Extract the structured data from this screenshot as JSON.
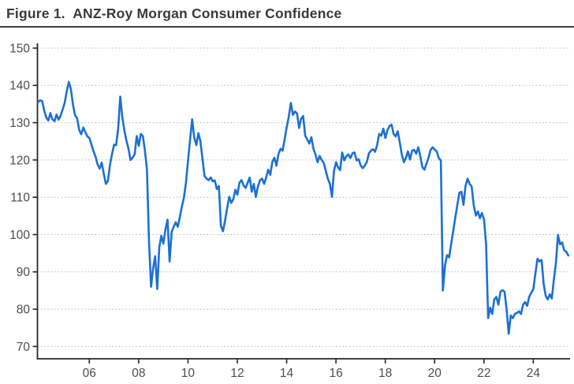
{
  "figure": {
    "title": "Figure 1.  ANZ-Roy Morgan Consumer Confidence"
  },
  "chart_data": {
    "type": "line",
    "title": "Figure 1.  ANZ-Roy Morgan Consumer Confidence",
    "xlabel": "",
    "ylabel": "",
    "legend": "none",
    "grid": "horizontal-dotted",
    "ylim": [
      67,
      151.5
    ],
    "xlim": [
      2003.9,
      2025.55
    ],
    "y_ticks": [
      70,
      80,
      90,
      100,
      110,
      120,
      130,
      140,
      150
    ],
    "x_ticks": [
      {
        "year": 2006,
        "label": "06"
      },
      {
        "year": 2008,
        "label": "08"
      },
      {
        "year": 2010,
        "label": "10"
      },
      {
        "year": 2012,
        "label": "12"
      },
      {
        "year": 2014,
        "label": "14"
      },
      {
        "year": 2016,
        "label": "16"
      },
      {
        "year": 2018,
        "label": "18"
      },
      {
        "year": 2020,
        "label": "20"
      },
      {
        "year": 2022,
        "label": "22"
      },
      {
        "year": 2024,
        "label": "24"
      }
    ],
    "line_color": "#1b70d4",
    "axis_color": "#262626",
    "grid_color": "#b5b5b5",
    "label_color": "#4d4d4d",
    "title_color": "#3a3a3a",
    "series": [
      {
        "name": "ANZ-Roy Morgan Consumer Confidence (index, monthly)",
        "x_start_year": 2003.92,
        "x_step_years": 0.083333,
        "values": [
          135.5,
          136.0,
          135.8,
          133.2,
          131.4,
          130.6,
          132.6,
          130.9,
          130.4,
          132.2,
          130.8,
          131.9,
          133.6,
          135.4,
          138.5,
          140.9,
          139.0,
          134.8,
          132.0,
          131.2,
          128.1,
          126.9,
          128.7,
          127.5,
          126.3,
          125.9,
          124.1,
          122.3,
          120.9,
          118.8,
          117.7,
          119.3,
          116.2,
          113.6,
          114.4,
          118.8,
          121.6,
          124.1,
          124.0,
          128.5,
          137.0,
          131.5,
          128.0,
          125.2,
          123.1,
          120.0,
          120.6,
          121.5,
          126.4,
          123.8,
          127.0,
          126.4,
          122.5,
          117.4,
          98.0,
          86.0,
          91.0,
          94.2,
          85.4,
          96.6,
          99.7,
          97.6,
          101.5,
          104.0,
          92.8,
          100.7,
          102.1,
          103.3,
          102.1,
          104.7,
          107.5,
          110.0,
          114.0,
          119.9,
          125.5,
          130.9,
          126.0,
          124.0,
          127.2,
          125.0,
          120.3,
          115.7,
          115.0,
          114.6,
          115.3,
          114.3,
          114.5,
          112.2,
          113.0,
          102.3,
          100.9,
          103.7,
          107.0,
          110.1,
          108.5,
          109.5,
          112.0,
          110.7,
          113.9,
          114.6,
          113.2,
          112.5,
          113.9,
          115.3,
          111.5,
          113.6,
          110.1,
          112.9,
          114.6,
          115.0,
          113.6,
          115.3,
          117.4,
          116.0,
          119.5,
          120.6,
          118.5,
          121.6,
          123.0,
          122.5,
          125.5,
          128.8,
          131.5,
          135.3,
          132.1,
          133.0,
          132.5,
          128.6,
          131.1,
          131.8,
          126.5,
          125.5,
          124.4,
          126.1,
          123.0,
          121.5,
          119.4,
          121.1,
          120.0,
          119.2,
          117.1,
          115.0,
          113.6,
          110.1,
          117.1,
          119.4,
          118.0,
          117.3,
          122.0,
          119.9,
          121.0,
          121.5,
          120.5,
          121.8,
          122.0,
          119.9,
          120.2,
          118.5,
          117.8,
          118.5,
          119.5,
          121.8,
          122.5,
          122.9,
          122.2,
          124.0,
          127.0,
          126.5,
          128.4,
          125.9,
          128.0,
          129.1,
          129.5,
          127.0,
          126.3,
          127.7,
          124.8,
          121.5,
          119.4,
          120.5,
          122.3,
          120.1,
          122.5,
          122.7,
          121.7,
          123.4,
          121.0,
          118.1,
          117.4,
          119.0,
          120.6,
          122.7,
          123.4,
          122.8,
          122.3,
          120.5,
          119.9,
          85.0,
          91.7,
          94.5,
          93.9,
          97.5,
          100.9,
          104.5,
          107.9,
          111.2,
          111.5,
          108.0,
          113.0,
          115.0,
          113.6,
          112.9,
          107.9,
          105.1,
          106.2,
          104.4,
          105.8,
          104.0,
          97.5,
          77.6,
          80.4,
          78.7,
          82.6,
          83.3,
          81.2,
          84.7,
          85.1,
          84.7,
          79.8,
          73.4,
          78.3,
          77.6,
          78.7,
          79.0,
          79.4,
          78.7,
          81.2,
          81.9,
          80.9,
          83.3,
          84.4,
          85.4,
          89.5,
          93.5,
          92.8,
          93.2,
          86.8,
          83.6,
          82.6,
          84.0,
          82.9,
          88.0,
          92.5,
          99.9,
          97.4,
          97.9,
          95.8,
          95.4,
          94.4
        ]
      }
    ]
  }
}
